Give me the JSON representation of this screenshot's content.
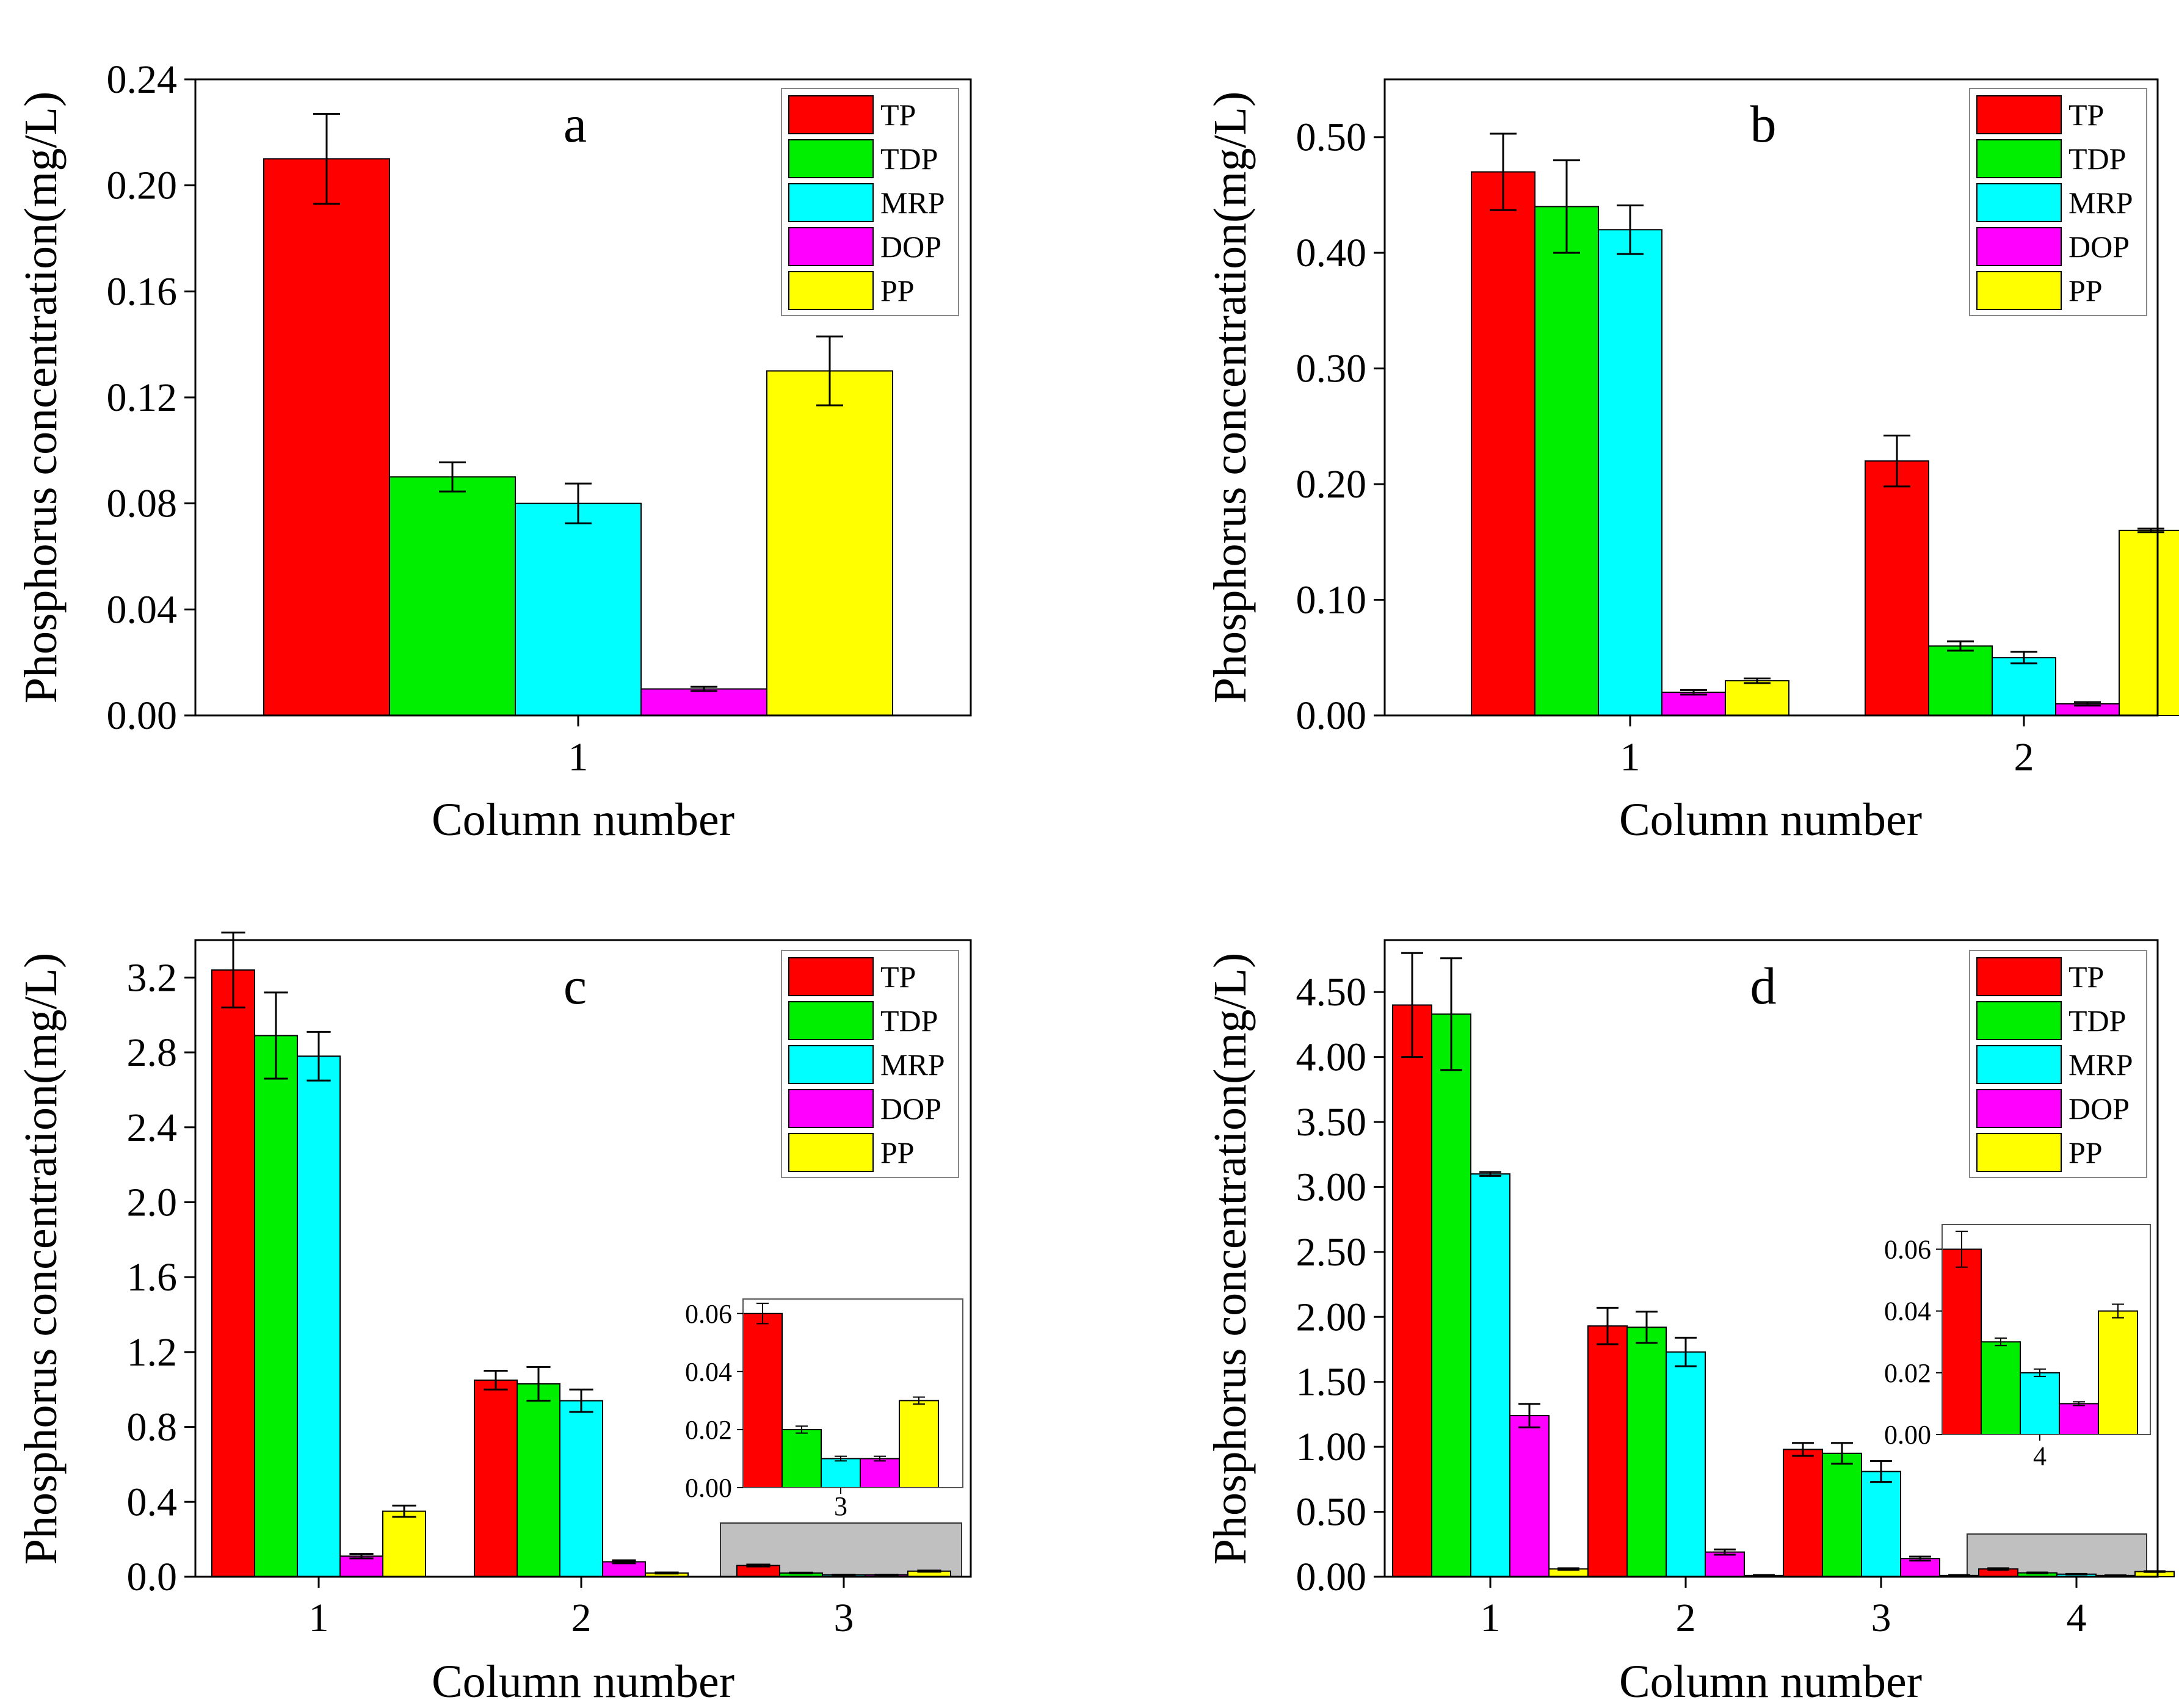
{
  "chart_data": [
    {
      "type": "bar",
      "panel_label": "a",
      "xlabel": "Column number",
      "ylabel": "Phosphorus concentration(mg/L)",
      "categories": [
        "1"
      ],
      "ylim": [
        0,
        0.24
      ],
      "yticks": [
        "0.00",
        "0.04",
        "0.08",
        "0.12",
        "0.16",
        "0.20",
        "0.24"
      ],
      "legend": [
        "TP",
        "TDP",
        "MRP",
        "DOP",
        "PP"
      ],
      "series": [
        {
          "name": "TP",
          "color": "#ff0000",
          "values": [
            0.21
          ],
          "errors": [
            0.017
          ]
        },
        {
          "name": "TDP",
          "color": "#00ee00",
          "values": [
            0.09
          ],
          "errors": [
            0.0055
          ]
        },
        {
          "name": "MRP",
          "color": "#00ffff",
          "values": [
            0.08
          ],
          "errors": [
            0.0075
          ]
        },
        {
          "name": "DOP",
          "color": "#ff00ff",
          "values": [
            0.01
          ],
          "errors": [
            0.0008
          ]
        },
        {
          "name": "PP",
          "color": "#ffff00",
          "values": [
            0.13
          ],
          "errors": [
            0.013
          ]
        }
      ]
    },
    {
      "type": "bar",
      "panel_label": "b",
      "xlabel": "Column number",
      "ylabel": "Phosphorus concentration(mg/L)",
      "categories": [
        "1",
        "2"
      ],
      "ylim": [
        0,
        0.55
      ],
      "yticks": [
        "0.00",
        "0.10",
        "0.20",
        "0.30",
        "0.40",
        "0.50"
      ],
      "legend": [
        "TP",
        "TDP",
        "MRP",
        "DOP",
        "PP"
      ],
      "series": [
        {
          "name": "TP",
          "color": "#ff0000",
          "values": [
            0.47,
            0.22
          ],
          "errors": [
            0.033,
            0.022
          ]
        },
        {
          "name": "TDP",
          "color": "#00ee00",
          "values": [
            0.44,
            0.06
          ],
          "errors": [
            0.04,
            0.004
          ]
        },
        {
          "name": "MRP",
          "color": "#00ffff",
          "values": [
            0.42,
            0.05
          ],
          "errors": [
            0.021,
            0.005
          ]
        },
        {
          "name": "DOP",
          "color": "#ff00ff",
          "values": [
            0.02,
            0.01
          ],
          "errors": [
            0.002,
            0.0015
          ]
        },
        {
          "name": "PP",
          "color": "#ffff00",
          "values": [
            0.03,
            0.16
          ],
          "errors": [
            0.002,
            0.0015
          ]
        }
      ]
    },
    {
      "type": "bar",
      "panel_label": "c",
      "xlabel": "Column number",
      "ylabel": "Phosphorus concentration(mg/L)",
      "categories": [
        "1",
        "2",
        "3"
      ],
      "ylim": [
        0,
        3.4
      ],
      "yticks": [
        "0.0",
        "0.4",
        "0.8",
        "1.2",
        "1.6",
        "2.0",
        "2.4",
        "2.8",
        "3.2"
      ],
      "legend": [
        "TP",
        "TDP",
        "MRP",
        "DOP",
        "PP"
      ],
      "series": [
        {
          "name": "TP",
          "color": "#ff0000",
          "values": [
            3.24,
            1.05,
            0.06
          ],
          "errors": [
            0.2,
            0.05,
            0.005
          ]
        },
        {
          "name": "TDP",
          "color": "#00ee00",
          "values": [
            2.89,
            1.03,
            0.02
          ],
          "errors": [
            0.23,
            0.09,
            0.002
          ]
        },
        {
          "name": "MRP",
          "color": "#00ffff",
          "values": [
            2.78,
            0.94,
            0.01
          ],
          "errors": [
            0.13,
            0.06,
            0.001
          ]
        },
        {
          "name": "DOP",
          "color": "#ff00ff",
          "values": [
            0.11,
            0.08,
            0.01
          ],
          "errors": [
            0.012,
            0.008,
            0.001
          ]
        },
        {
          "name": "PP",
          "color": "#ffff00",
          "values": [
            0.35,
            0.02,
            0.03
          ],
          "errors": [
            0.03,
            0.003,
            0.003
          ]
        }
      ],
      "inset": {
        "category": "3",
        "ylim": [
          0,
          0.065
        ],
        "yticks": [
          "0.00",
          "0.02",
          "0.04",
          "0.06"
        ],
        "values": [
          0.06,
          0.02,
          0.01,
          0.01,
          0.03
        ],
        "errors": [
          0.0035,
          0.0012,
          0.0008,
          0.0008,
          0.0012
        ]
      }
    },
    {
      "type": "bar",
      "panel_label": "d",
      "xlabel": "Column number",
      "ylabel": "Phosphorus concentration(mg/L)",
      "categories": [
        "1",
        "2",
        "3",
        "4"
      ],
      "ylim": [
        0,
        4.9
      ],
      "yticks": [
        "0.00",
        "0.50",
        "1.00",
        "1.50",
        "2.00",
        "2.50",
        "3.00",
        "3.50",
        "4.00",
        "4.50"
      ],
      "legend": [
        "TP",
        "TDP",
        "MRP",
        "DOP",
        "PP"
      ],
      "series": [
        {
          "name": "TP",
          "color": "#ff0000",
          "values": [
            4.4,
            1.93,
            0.98,
            0.06
          ],
          "errors": [
            0.4,
            0.14,
            0.05,
            0.006
          ]
        },
        {
          "name": "TDP",
          "color": "#00ee00",
          "values": [
            4.33,
            1.92,
            0.95,
            0.03
          ],
          "errors": [
            0.43,
            0.12,
            0.08,
            0.003
          ]
        },
        {
          "name": "MRP",
          "color": "#00ffff",
          "values": [
            3.1,
            1.73,
            0.81,
            0.02
          ],
          "errors": [
            0.015,
            0.11,
            0.08,
            0.002
          ]
        },
        {
          "name": "DOP",
          "color": "#ff00ff",
          "values": [
            1.24,
            0.19,
            0.14,
            0.01
          ],
          "errors": [
            0.09,
            0.02,
            0.015,
            0.001
          ]
        },
        {
          "name": "PP",
          "color": "#ffff00",
          "values": [
            0.06,
            0.01,
            0.01,
            0.04
          ],
          "errors": [
            0.006,
            0.003,
            0.003,
            0.003
          ]
        }
      ],
      "inset": {
        "category": "4",
        "ylim": [
          0,
          0.068
        ],
        "yticks": [
          "0.00",
          "0.02",
          "0.04",
          "0.06"
        ],
        "values": [
          0.06,
          0.03,
          0.02,
          0.01,
          0.04
        ],
        "errors": [
          0.0058,
          0.0012,
          0.0012,
          0.0006,
          0.0022
        ]
      }
    }
  ]
}
